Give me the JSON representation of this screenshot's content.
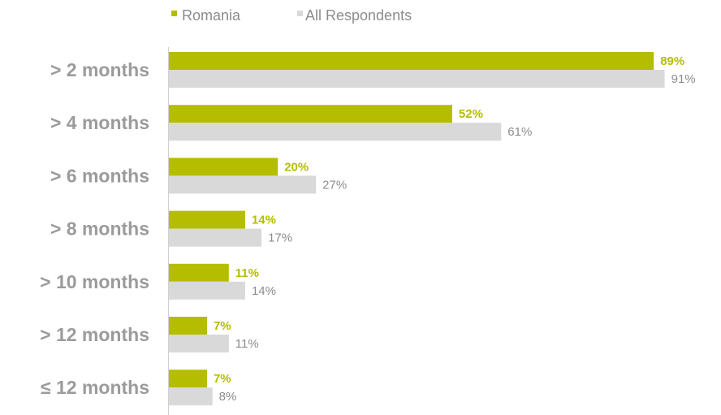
{
  "chart_data": {
    "type": "bar",
    "orientation": "horizontal",
    "categories": [
      "> 2 months",
      "> 4 months",
      "> 6 months",
      "> 8 months",
      "> 10 months",
      "> 12 months",
      "≤ 12 months"
    ],
    "series": [
      {
        "name": "Romania",
        "values": [
          89,
          52,
          20,
          14,
          11,
          7,
          7
        ],
        "labels": [
          "89%",
          "52%",
          "20%",
          "14%",
          "11%",
          "7%",
          "7%"
        ],
        "color": "#b5bd00"
      },
      {
        "name": "All Respondents",
        "values": [
          91,
          61,
          27,
          17,
          14,
          11,
          8
        ],
        "labels": [
          "91%",
          "61%",
          "27%",
          "17%",
          "14%",
          "11%",
          "8%"
        ],
        "color": "#d9d9d9"
      }
    ],
    "xlim": [
      0,
      100
    ],
    "legend_position": "top",
    "grid": false
  }
}
